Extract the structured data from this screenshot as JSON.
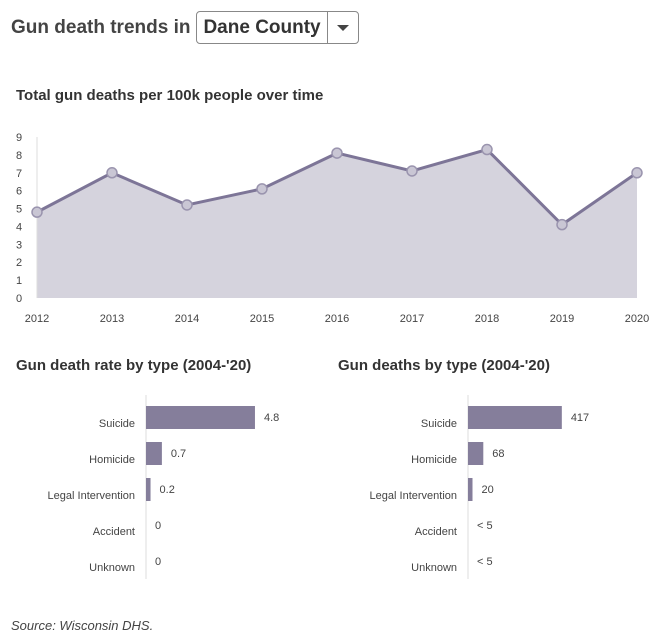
{
  "header": {
    "title": "Gun death trends in",
    "selected_county": "Dane County"
  },
  "source": "Source: Wisconsin DHS.",
  "colors": {
    "line": "#7d7597",
    "area": "#d5d3dd",
    "bar": "#857e9b"
  },
  "chart_data": [
    {
      "type": "area",
      "title": "Total gun deaths per 100k people over time",
      "x": [
        "2012",
        "2013",
        "2014",
        "2015",
        "2016",
        "2017",
        "2018",
        "2019",
        "2020"
      ],
      "values": [
        4.8,
        7.0,
        5.2,
        6.1,
        8.1,
        7.1,
        8.3,
        4.1,
        7.0
      ],
      "ylim": [
        0,
        9
      ],
      "yticks": [
        "0",
        "1",
        "2",
        "3",
        "4",
        "5",
        "6",
        "7",
        "8",
        "9"
      ]
    },
    {
      "type": "bar",
      "title": "Gun death rate by type (2004-'20)",
      "categories": [
        "Suicide",
        "Homicide",
        "Legal Intervention",
        "Accident",
        "Unknown"
      ],
      "values": [
        4.8,
        0.7,
        0.2,
        0,
        0
      ],
      "labels": [
        "4.8",
        "0.7",
        "0.2",
        "0",
        "0"
      ]
    },
    {
      "type": "bar",
      "title": "Gun deaths by type (2004-'20)",
      "categories": [
        "Suicide",
        "Homicide",
        "Legal Intervention",
        "Accident",
        "Unknown"
      ],
      "values": [
        417,
        68,
        20,
        0,
        0
      ],
      "labels": [
        "417",
        "68",
        "20",
        "< 5",
        "< 5"
      ]
    }
  ]
}
